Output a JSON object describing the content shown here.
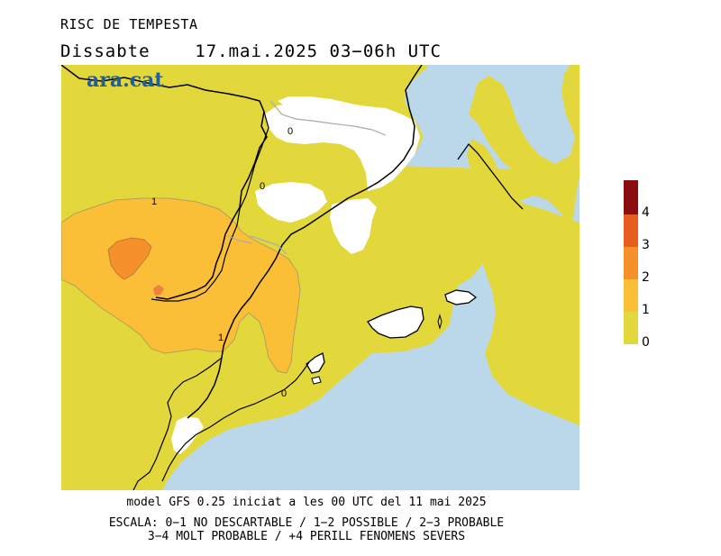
{
  "header": {
    "title": "RISC DE TEMPESTA",
    "day": "Dissabte",
    "datetime": "17.mai.2025 03−06h UTC"
  },
  "logo": "ara.cat",
  "footer": {
    "line1": "model GFS 0.25 iniciat a les 00 UTC del 11 mai 2025",
    "line2": "ESCALA: 0−1 NO DESCARTABLE / 1−2 POSSIBLE / 2−3 PROBABLE",
    "line3": "3−4 MOLT PROBABLE / +4 PERILL FENOMENS SEVERS"
  },
  "legend": {
    "levels": [
      {
        "value": "0",
        "color": "#e3d83b"
      },
      {
        "value": "1",
        "color": "#fbbf37"
      },
      {
        "value": "2",
        "color": "#f5902a"
      },
      {
        "value": "3",
        "color": "#e95c20"
      },
      {
        "value": "4",
        "color": "#b0180f"
      }
    ],
    "top_color": "#8b0e0e"
  },
  "map": {
    "sea_color": "#bad8ea",
    "land_low_color": "#e3d83b",
    "no_risk_color": "#ffffff",
    "contour_labels": [
      "0",
      "0",
      "1",
      "1",
      "0"
    ]
  }
}
